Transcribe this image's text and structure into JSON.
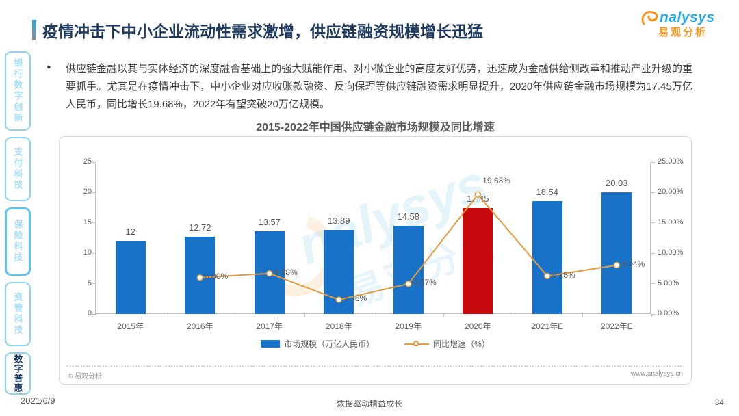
{
  "page": {
    "title": "疫情冲击下中小企业流动性需求激增，供应链融资规模增长迅猛",
    "date": "2021/6/9",
    "footer_slogan": "数据驱动精益成长",
    "page_number": "34"
  },
  "logo": {
    "brand_latin": "nalysys",
    "brand_cn": "易观分析"
  },
  "sidebar": {
    "items": [
      {
        "label": "银行数字创新",
        "active": false
      },
      {
        "label": "支付科技",
        "active": false
      },
      {
        "label": "保险科技",
        "active": false
      },
      {
        "label": "资管科技",
        "active": false
      },
      {
        "label": "数字普惠",
        "active": true
      }
    ]
  },
  "body": {
    "bullet_marker": "●",
    "bullet_text": "供应链金融以其与实体经济的深度融合基础上的强大赋能作用、对小微企业的高度友好优势，迅速成为金融供给侧改革和推动产业升级的重要抓手。尤其是在疫情冲击下，中小企业对应收账款融资、反向保理等供应链融资需求明显提升，2020年供应链金融市场规模为17.45万亿人民币，同比增长19.68%，2022年有望突破20万亿规模。"
  },
  "chart": {
    "source_note": "© 易观分析",
    "website": "www.analysys.cn",
    "watermark_latin": "nalysys",
    "watermark_cn": "易观分析"
  },
  "chart_data": {
    "type": "bar+line combo",
    "title": "2015-2022年中国供应链金融市场规模及同比增速",
    "categories": [
      "2015年",
      "2016年",
      "2017年",
      "2018年",
      "2019年",
      "2020年",
      "2021年E",
      "2022年E"
    ],
    "series": [
      {
        "name": "市场规模（万亿人民币）",
        "type": "bar",
        "values": [
          12,
          12.72,
          13.57,
          13.89,
          14.58,
          17.45,
          18.54,
          20.03
        ],
        "labels": [
          "12",
          "12.72",
          "13.57",
          "13.89",
          "14.58",
          "17.45",
          "18.54",
          "20.03"
        ]
      },
      {
        "name": "同比增速（%）",
        "type": "line",
        "values": [
          null,
          6.0,
          6.68,
          2.36,
          4.97,
          19.68,
          6.25,
          8.04
        ],
        "labels": [
          "",
          "6.00%",
          "6.68%",
          "2.36%",
          "4.97%",
          "19.68%",
          "6.25%",
          "8.04%"
        ]
      }
    ],
    "left_axis": {
      "min": 0,
      "max": 25,
      "ticks": [
        0,
        5,
        10,
        15,
        20,
        25
      ]
    },
    "right_axis": {
      "min": 0,
      "max": 25,
      "ticks": [
        "0.00%",
        "5.00%",
        "10.00%",
        "15.00%",
        "20.00%",
        "25.00%"
      ]
    },
    "highlight_index": 5,
    "legend_position": "bottom",
    "grid": false,
    "colors": {
      "bar": "#1873C8",
      "bar_highlight": "#C5090C",
      "line": "#E49A3F",
      "axis": "#BFBFBF",
      "label": "#595959"
    }
  }
}
